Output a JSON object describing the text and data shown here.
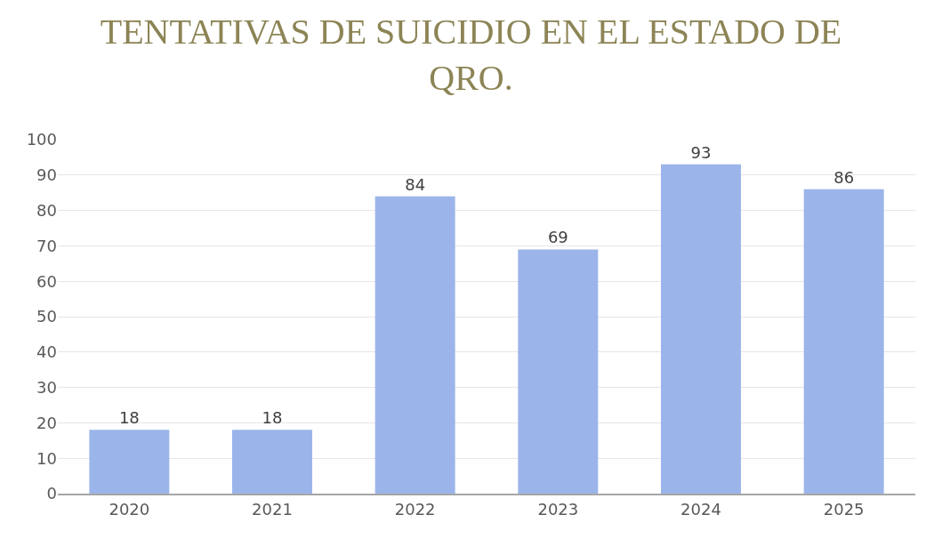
{
  "chart_data": {
    "type": "bar",
    "title": "TENTATIVAS DE SUICIDIO EN EL ESTADO DE QRO.",
    "categories": [
      "2020",
      "2021",
      "2022",
      "2023",
      "2024",
      "2025"
    ],
    "values": [
      18,
      18,
      84,
      69,
      93,
      86
    ],
    "color": "#9bb5ea",
    "ylim": [
      0,
      100
    ],
    "yticks": [
      0,
      10,
      20,
      30,
      40,
      50,
      60,
      70,
      80,
      90,
      100
    ],
    "grid": "y",
    "data_labels": true
  }
}
